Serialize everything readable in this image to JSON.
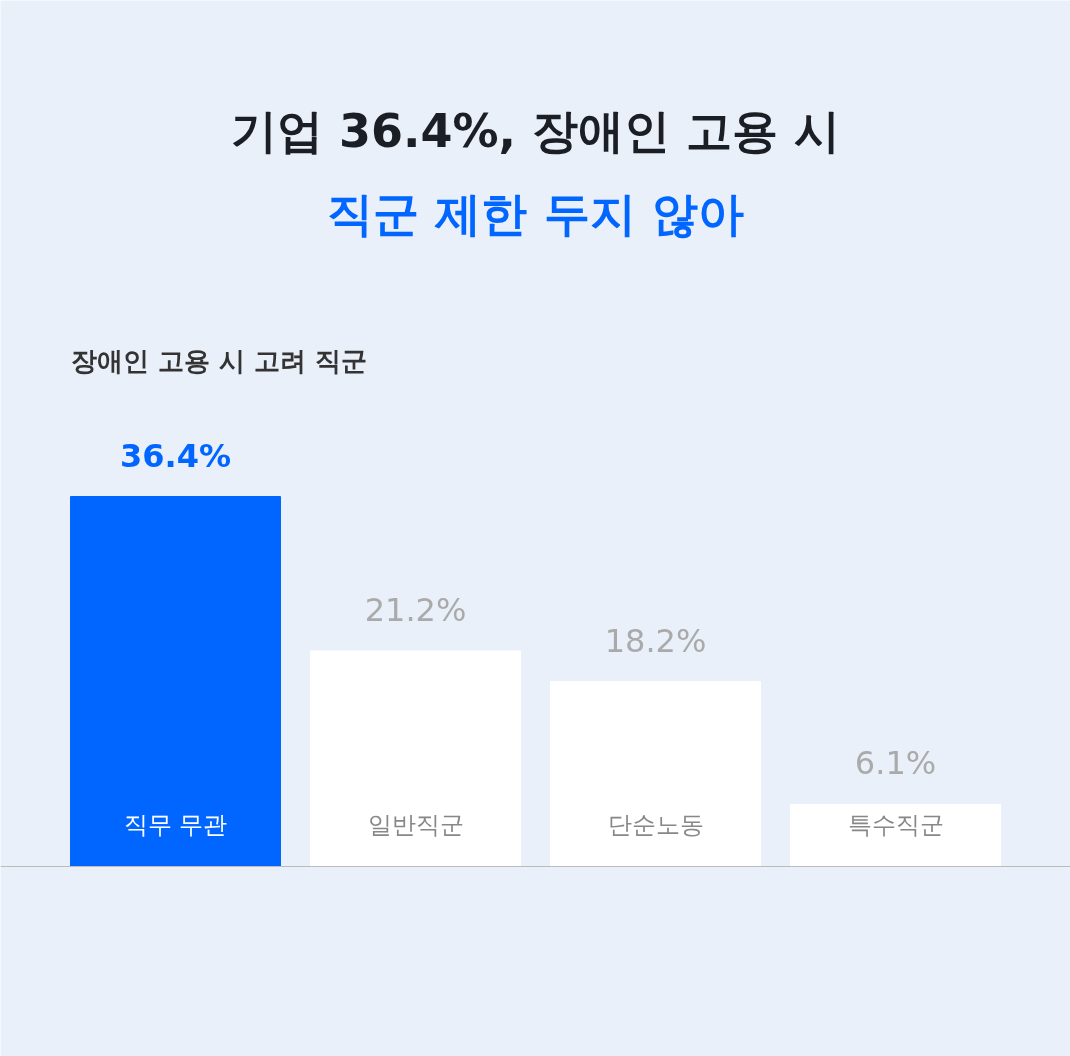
{
  "chart_data": {
    "type": "bar",
    "title": "기업 36.4%, 장애인 고용 시",
    "subtitle": "직군 제한 두지 않아",
    "annotations": [
      "장애인 고용 시 고려 직군"
    ],
    "categories": [
      "직무 무관",
      "일반직군",
      "단순노동",
      "특수직군"
    ],
    "values": [
      36.4,
      21.2,
      18.2,
      6.1
    ],
    "colors": [
      "#0066ff",
      "#ffffff",
      "#ffffff",
      "#ffffff"
    ],
    "value_labels": [
      "36.4%",
      "21.2%",
      "18.2%",
      "6.1%"
    ],
    "grid": false
  }
}
